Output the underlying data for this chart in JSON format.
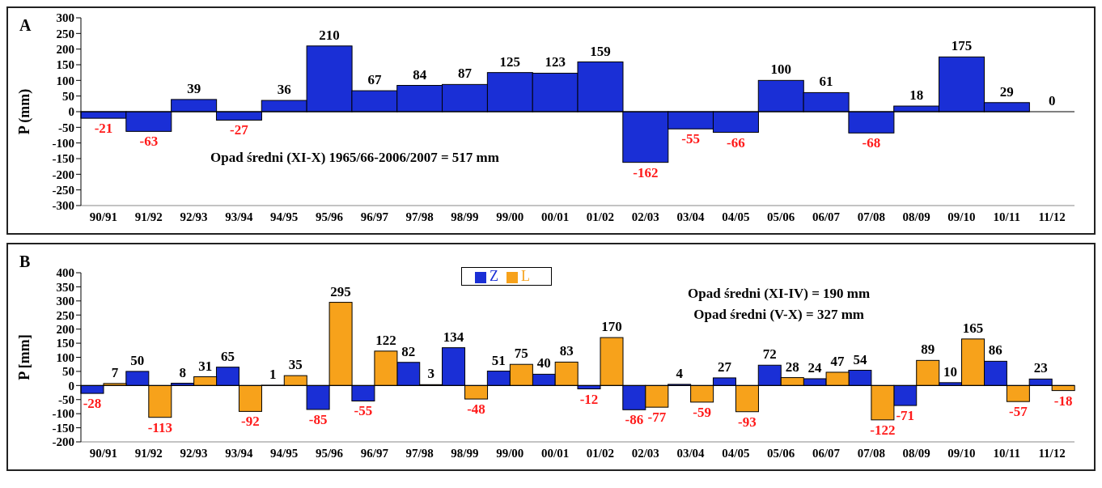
{
  "chart_data": [
    {
      "type": "bar",
      "title": "A",
      "ylabel": "P (mm)",
      "categories": [
        "90/91",
        "91/92",
        "92/93",
        "93/94",
        "94/95",
        "95/96",
        "96/97",
        "97/98",
        "98/99",
        "99/00",
        "00/01",
        "01/02",
        "02/03",
        "03/04",
        "04/05",
        "05/06",
        "06/07",
        "07/08",
        "08/09",
        "09/10",
        "10/11",
        "11/12"
      ],
      "series": [
        {
          "color": "#1a2fd6",
          "values": [
            -21,
            -63,
            39,
            -27,
            36,
            210,
            67,
            84,
            87,
            125,
            123,
            159,
            -162,
            -55,
            -66,
            100,
            61,
            -68,
            18,
            175,
            29,
            0
          ]
        }
      ],
      "ylim": [
        -300,
        300
      ],
      "yticks": [
        -300,
        -250,
        -200,
        -150,
        -100,
        -50,
        0,
        50,
        100,
        150,
        200,
        250,
        300
      ],
      "data_labels": true,
      "legend": false,
      "annotations": [
        "Opad średni (XI-X) 1965/66-2006/2007 = 517 mm"
      ]
    },
    {
      "type": "bar",
      "title": "B",
      "ylabel": "P [mm]",
      "categories": [
        "90/91",
        "91/92",
        "92/93",
        "93/94",
        "94/95",
        "95/96",
        "96/97",
        "97/98",
        "98/99",
        "99/00",
        "00/01",
        "01/02",
        "02/03",
        "03/04",
        "04/05",
        "05/06",
        "06/07",
        "07/08",
        "08/09",
        "09/10",
        "10/11",
        "11/12"
      ],
      "series": [
        {
          "name": "Z",
          "color": "#1a2fd6",
          "values": [
            -28,
            50,
            8,
            65,
            1,
            -85,
            -55,
            82,
            134,
            51,
            40,
            -12,
            -86,
            4,
            27,
            72,
            24,
            54,
            -71,
            10,
            86,
            23
          ]
        },
        {
          "name": "L",
          "color": "#f7a21b",
          "values": [
            7,
            -113,
            31,
            -92,
            35,
            295,
            122,
            3,
            -48,
            75,
            83,
            170,
            -77,
            -59,
            -93,
            28,
            47,
            -122,
            89,
            165,
            -57,
            -18
          ]
        }
      ],
      "ylim": [
        -200,
        400
      ],
      "yticks": [
        -200,
        -150,
        -100,
        -50,
        0,
        50,
        100,
        150,
        200,
        250,
        300,
        350,
        400
      ],
      "data_labels": true,
      "legend": "top",
      "annotations": [
        "Opad średni (XI-IV) = 190 mm",
        "Opad średni (V-X) = 327 mm"
      ]
    }
  ]
}
